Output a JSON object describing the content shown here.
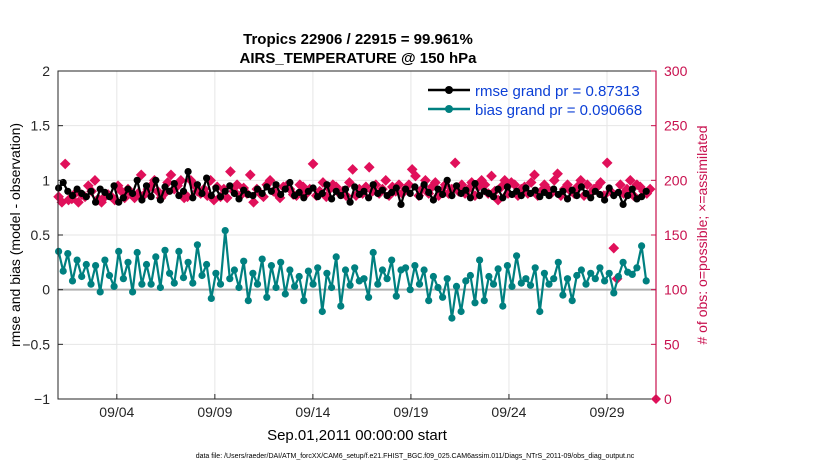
{
  "chart_data": {
    "type": "line",
    "title": "Tropics 22906 / 22915 = 99.961%",
    "subtitle": "AIRS_TEMPERATURE @ 150 hPa",
    "xlabel": "Sep.01,2011 00:00:00 start",
    "ylabel": "rmse and bias (model - observation)",
    "ylabel_right": "# of obs: o=possible; ×=assimilated",
    "footer": "data file: /Users/raeder/DAI/ATM_forcXX/CAM6_setup/f.e21.FHIST_BGC.f09_025.CAM6assim.011/Diags_NTrS_2011-09/obs_diag_output.nc",
    "xlim": [
      1,
      31.5
    ],
    "ylim": [
      -1,
      2
    ],
    "ylim_right": [
      0,
      300
    ],
    "xticks": [
      4,
      9,
      14,
      19,
      24,
      29
    ],
    "xtick_labels": [
      "09/04",
      "09/09",
      "09/14",
      "09/19",
      "09/24",
      "09/29"
    ],
    "yticks": [
      -1,
      -0.5,
      0,
      0.5,
      1,
      1.5,
      2
    ],
    "ytick_labels": [
      "−1",
      "−0.5",
      "0",
      "0.5",
      "1",
      "1.5",
      "2"
    ],
    "yticks_right": [
      0,
      50,
      100,
      150,
      200,
      250,
      300
    ],
    "ytick_labels_right": [
      "0",
      "50",
      "100",
      "150",
      "200",
      "250",
      "300"
    ],
    "legend_position": "top-right",
    "colors": {
      "rmse": "#000000",
      "bias": "#008080",
      "obs": "#e0105a",
      "axis_right": "#c8104e",
      "legend_text": "#0b3fd6",
      "zero_line": "#b0b0b0",
      "grid": "#e6e6e6"
    },
    "series": [
      {
        "name": "rmse grand pr = 0.87313",
        "axis": "left",
        "values": [
          0.93,
          0.98,
          0.9,
          0.86,
          0.92,
          0.88,
          0.85,
          0.9,
          0.8,
          0.92,
          0.89,
          0.85,
          0.95,
          0.8,
          0.84,
          0.92,
          0.88,
          1.0,
          0.82,
          0.95,
          0.85,
          1.0,
          0.82,
          0.94,
          0.9,
          0.97,
          0.86,
          0.9,
          1.08,
          0.84,
          0.96,
          0.88,
          1.02,
          0.86,
          0.93,
          0.85,
          0.9,
          0.95,
          0.88,
          0.83,
          0.91,
          0.87,
          0.86,
          0.92,
          0.88,
          0.94,
          0.9,
          0.96,
          0.87,
          0.92,
          0.98,
          0.86,
          0.89,
          0.84,
          0.9,
          0.93,
          0.85,
          0.88,
          0.96,
          0.83,
          0.9,
          0.86,
          0.92,
          0.8,
          0.94,
          0.87,
          0.9,
          0.84,
          0.96,
          0.88,
          0.91,
          0.86,
          0.89,
          0.93,
          0.78,
          0.92,
          0.88,
          0.94,
          0.85,
          0.96,
          0.89,
          0.82,
          0.92,
          0.87,
          1.0,
          0.86,
          0.95,
          0.88,
          0.91,
          0.84,
          0.97,
          0.86,
          0.9,
          0.88,
          0.85,
          0.92,
          0.84,
          0.94,
          0.87,
          0.9,
          0.86,
          0.93,
          0.88,
          0.91,
          0.85,
          0.89,
          0.86,
          0.92,
          0.87,
          0.9,
          0.83,
          0.91,
          0.86,
          0.94,
          0.88,
          0.84,
          0.9,
          0.87,
          0.82,
          0.93,
          0.86,
          0.89,
          0.78,
          0.86,
          0.92,
          0.83,
          0.85,
          0.9
        ]
      },
      {
        "name": "bias grand pr = 0.090668",
        "axis": "left",
        "values": [
          0.35,
          0.17,
          0.33,
          0.08,
          0.27,
          0.12,
          0.23,
          0.05,
          0.22,
          -0.02,
          0.27,
          0.13,
          0.03,
          0.35,
          0.1,
          0.25,
          -0.02,
          0.34,
          0.05,
          0.23,
          0.05,
          0.3,
          0.02,
          0.36,
          0.15,
          0.06,
          0.35,
          0.11,
          0.25,
          0.06,
          0.41,
          0.13,
          0.23,
          -0.08,
          0.15,
          0.05,
          0.54,
          0.1,
          0.18,
          0.02,
          0.26,
          -0.1,
          0.15,
          0.05,
          0.28,
          -0.07,
          0.22,
          0.02,
          0.25,
          -0.04,
          0.18,
          0.03,
          0.12,
          -0.1,
          0.17,
          0.05,
          0.2,
          -0.2,
          0.15,
          0.02,
          0.3,
          -0.15,
          0.18,
          0.04,
          0.2,
          0.08,
          0.1,
          -0.07,
          0.34,
          0.05,
          0.18,
          0.1,
          0.27,
          -0.06,
          0.18,
          0.2,
          0.0,
          0.22,
          0.05,
          0.18,
          -0.1,
          0.12,
          0.02,
          -0.07,
          0.1,
          -0.26,
          0.03,
          -0.2,
          0.08,
          0.13,
          -0.12,
          0.27,
          -0.1,
          0.12,
          0.05,
          0.19,
          -0.15,
          0.22,
          0.03,
          0.31,
          0.06,
          0.1,
          0.04,
          0.2,
          -0.2,
          0.15,
          0.05,
          0.1,
          0.25,
          -0.05,
          0.1,
          -0.1,
          0.13,
          0.18,
          0.05,
          0.15,
          0.1,
          0.2,
          0.08,
          0.15,
          -0.03,
          0.12,
          0.25,
          0.16,
          0.14,
          0.2,
          0.4,
          0.08
        ]
      },
      {
        "name": "obs assimilated",
        "axis": "right",
        "values": [
          185,
          180,
          215,
          182,
          183,
          188,
          180,
          187,
          185,
          195,
          190,
          200,
          183,
          180,
          185,
          187,
          185,
          182,
          195,
          190,
          184,
          192,
          188,
          184,
          188,
          205,
          187,
          192,
          195,
          200,
          190,
          184,
          188,
          198,
          205,
          192,
          195,
          200,
          184,
          185,
          200,
          196,
          190,
          188,
          192,
          186,
          200,
          182,
          194,
          185,
          192,
          184,
          208,
          190,
          196,
          186,
          193,
          188,
          205,
          180,
          192,
          188,
          185,
          196,
          200,
          190,
          188,
          184,
          194,
          195,
          192,
          187,
          186,
          196,
          194,
          188,
          192,
          215,
          186,
          190,
          198,
          185,
          192,
          196,
          194,
          188,
          190,
          186,
          198,
          210,
          186,
          192,
          188,
          194,
          212,
          190,
          196,
          188,
          192,
          200,
          186,
          194,
          190,
          196,
          188,
          192,
          196,
          210,
          204,
          186,
          192,
          200,
          188,
          194,
          198,
          186,
          190,
          196,
          188,
          192,
          216,
          190,
          196,
          188,
          192,
          198,
          186,
          194,
          200,
          196,
          188,
          204,
          190,
          182,
          194,
          200,
          188,
          198,
          196,
          186,
          192,
          194,
          188,
          198,
          205,
          186,
          190,
          196,
          192,
          188,
          200,
          206,
          186,
          192,
          196,
          190,
          188,
          194,
          200,
          186,
          196,
          188,
          192,
          194,
          198,
          186,
          216,
          190,
          138,
          110,
          196,
          188,
          192,
          200,
          186,
          196,
          194,
          190,
          188,
          192
        ],
        "series_x_end": 31.2
      }
    ]
  }
}
